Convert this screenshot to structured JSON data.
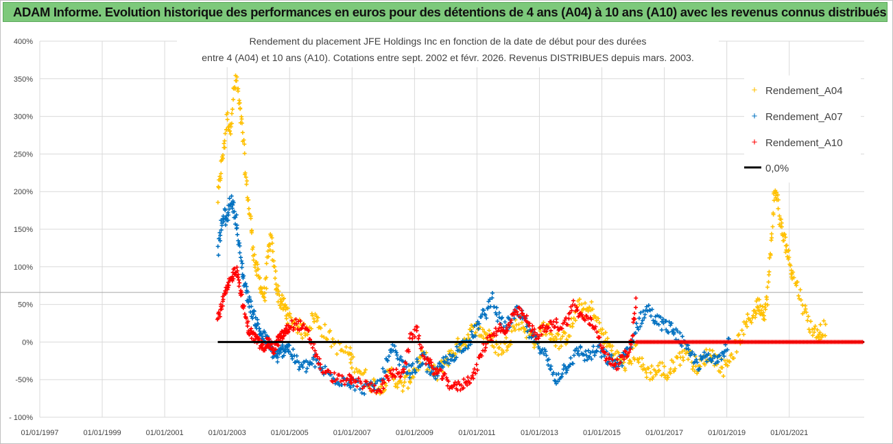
{
  "banner": {
    "title": "ADAM Informe. Evolution historique des performances en euros pour des détentions de 4 ans (A04) à 10 ans (A10) avec les revenus connus distribués"
  },
  "colors": {
    "banner_bg": "#7dc97b",
    "a04": "#ffc000",
    "a07": "#0070c0",
    "a10": "#ff0000",
    "zero_line": "#000000",
    "grid": "#d9d9d9"
  },
  "chart_data": {
    "type": "scatter",
    "title_lines": [
      "Rendement du placement JFE Holdings Inc en fonction de la date de début pour des durées",
      "entre 4 (A04) et 10 ans (A10). Cotations entre sept. 2002 et févr. 2026. Revenus DISTRIBUES depuis mars. 2003."
    ],
    "ylim": [
      -100,
      400
    ],
    "y_ticks": [
      {
        "value": 400,
        "label": "400%"
      },
      {
        "value": 350,
        "label": "350%"
      },
      {
        "value": 300,
        "label": "300%"
      },
      {
        "value": 250,
        "label": "250%"
      },
      {
        "value": 200,
        "label": "200%"
      },
      {
        "value": 150,
        "label": "150%"
      },
      {
        "value": 100,
        "label": "100%"
      },
      {
        "value": 50,
        "label": "50%"
      },
      {
        "value": 0,
        "label": "0%"
      },
      {
        "value": -50,
        "label": "-50%"
      },
      {
        "value": -100,
        "label": "- 100%"
      }
    ],
    "xlim": [
      1997.0,
      2023.4
    ],
    "x_ticks": [
      {
        "value": 1997,
        "label": "01/01/1997"
      },
      {
        "value": 1999,
        "label": "01/01/1999"
      },
      {
        "value": 2001,
        "label": "01/01/2001"
      },
      {
        "value": 2003,
        "label": "01/01/2003"
      },
      {
        "value": 2005,
        "label": "01/01/2005"
      },
      {
        "value": 2007,
        "label": "01/01/2007"
      },
      {
        "value": 2009,
        "label": "01/01/2009"
      },
      {
        "value": 2011,
        "label": "01/01/2011"
      },
      {
        "value": 2013,
        "label": "01/01/2013"
      },
      {
        "value": 2015,
        "label": "01/01/2015"
      },
      {
        "value": 2017,
        "label": "01/01/2017"
      },
      {
        "value": 2019,
        "label": "01/01/2019"
      },
      {
        "value": 2021,
        "label": "01/01/2021"
      }
    ],
    "reference_line_y": 66,
    "series": [
      {
        "name": "Rendement_A04",
        "marker": "+",
        "x": [
          2002.7,
          2002.8,
          2002.9,
          2003.0,
          2003.1,
          2003.2,
          2003.3,
          2003.4,
          2003.5,
          2003.6,
          2003.7,
          2003.8,
          2003.9,
          2004.0,
          2004.1,
          2004.2,
          2004.3,
          2004.4,
          2004.5,
          2004.6,
          2004.7,
          2004.8,
          2004.9,
          2005.0,
          2005.2,
          2005.4,
          2005.6,
          2005.8,
          2006.0,
          2006.3,
          2006.6,
          2006.9,
          2007.0,
          2007.3,
          2007.6,
          2007.9,
          2008.1,
          2008.3,
          2008.5,
          2008.7,
          2008.9,
          2009.1,
          2009.3,
          2009.5,
          2009.7,
          2009.9,
          2010.1,
          2010.3,
          2010.5,
          2010.7,
          2010.9,
          2011.1,
          2011.3,
          2011.5,
          2011.7,
          2011.9,
          2012.1,
          2012.3,
          2012.5,
          2012.7,
          2012.9,
          2013.1,
          2013.3,
          2013.5,
          2013.7,
          2013.9,
          2014.1,
          2014.3,
          2014.5,
          2014.7,
          2014.9,
          2015.1,
          2015.3,
          2015.5,
          2015.7,
          2015.9,
          2016.1,
          2016.3,
          2016.5,
          2016.7,
          2016.9,
          2017.1,
          2017.3,
          2017.5,
          2017.7,
          2017.9,
          2018.1,
          2018.3,
          2018.5,
          2018.7,
          2018.9,
          2019.1,
          2019.3,
          2019.5,
          2019.7,
          2019.9,
          2020.0,
          2020.1,
          2020.2,
          2020.3,
          2020.4,
          2020.5,
          2020.6,
          2020.7,
          2020.8,
          2020.9,
          2021.0,
          2021.1,
          2021.3,
          2021.5,
          2021.7,
          2021.9,
          2022.0
        ],
        "y": [
          190,
          230,
          260,
          300,
          280,
          330,
          350,
          310,
          280,
          215,
          180,
          140,
          100,
          90,
          70,
          60,
          110,
          140,
          100,
          70,
          55,
          50,
          40,
          30,
          25,
          15,
          20,
          35,
          20,
          5,
          -10,
          -15,
          -25,
          -40,
          -55,
          -60,
          -50,
          -40,
          -60,
          -55,
          -45,
          -30,
          -20,
          -35,
          -45,
          -30,
          -20,
          -10,
          0,
          5,
          20,
          15,
          10,
          0,
          -10,
          -5,
          10,
          30,
          20,
          10,
          0,
          20,
          15,
          5,
          0,
          10,
          30,
          50,
          40,
          45,
          20,
          5,
          -10,
          -20,
          -30,
          -25,
          -10,
          -35,
          -40,
          -40,
          -35,
          -45,
          -30,
          -20,
          -10,
          -25,
          -35,
          -20,
          -15,
          -25,
          -35,
          -20,
          -5,
          10,
          30,
          40,
          50,
          45,
          40,
          60,
          120,
          190,
          200,
          160,
          140,
          130,
          110,
          90,
          70,
          40,
          20,
          10,
          15
        ],
        "x_extra": [
          2022.2
        ],
        "y_extra": [
          20
        ]
      },
      {
        "name": "Rendement_A07",
        "marker": "+",
        "x": [
          2002.7,
          2002.8,
          2002.9,
          2003.0,
          2003.1,
          2003.2,
          2003.3,
          2003.4,
          2003.5,
          2003.6,
          2003.7,
          2003.8,
          2003.9,
          2004.0,
          2004.1,
          2004.2,
          2004.3,
          2004.4,
          2004.5,
          2004.6,
          2004.7,
          2004.8,
          2004.9,
          2005.0,
          2005.2,
          2005.4,
          2005.6,
          2005.8,
          2006.0,
          2006.3,
          2006.6,
          2006.9,
          2007.0,
          2007.3,
          2007.6,
          2007.9,
          2008.1,
          2008.3,
          2008.5,
          2008.7,
          2008.9,
          2009.1,
          2009.3,
          2009.5,
          2009.7,
          2009.9,
          2010.1,
          2010.3,
          2010.5,
          2010.7,
          2010.9,
          2011.1,
          2011.3,
          2011.5,
          2011.7,
          2011.9,
          2012.1,
          2012.3,
          2012.5,
          2012.7,
          2012.9,
          2013.1,
          2013.3,
          2013.5,
          2013.7,
          2013.9,
          2014.1,
          2014.3,
          2014.5,
          2014.7,
          2014.9,
          2015.1,
          2015.3,
          2015.5,
          2015.7,
          2015.9,
          2016.1,
          2016.3,
          2016.5,
          2016.7,
          2016.9,
          2017.1,
          2017.3,
          2017.5,
          2017.7,
          2017.9,
          2018.1,
          2018.3,
          2018.5,
          2018.7,
          2018.9,
          2019.1
        ],
        "y": [
          120,
          150,
          170,
          160,
          190,
          180,
          160,
          120,
          90,
          70,
          55,
          40,
          30,
          20,
          10,
          5,
          0,
          -10,
          -15,
          -20,
          -15,
          -10,
          -5,
          -10,
          -25,
          -35,
          -30,
          -25,
          -35,
          -45,
          -50,
          -50,
          -55,
          -60,
          -62,
          -55,
          -30,
          -10,
          -25,
          -35,
          -40,
          -30,
          -20,
          -45,
          -40,
          -30,
          -25,
          -15,
          -5,
          0,
          10,
          30,
          40,
          60,
          30,
          20,
          30,
          40,
          30,
          10,
          0,
          -10,
          -30,
          -50,
          -40,
          -30,
          -20,
          -10,
          -20,
          -15,
          -10,
          -20,
          -25,
          -30,
          -20,
          -10,
          20,
          35,
          45,
          30,
          25,
          20,
          15,
          5,
          -10,
          -20,
          -30,
          -20,
          -25,
          -20,
          -10,
          5
        ]
      },
      {
        "name": "Rendement_A10",
        "marker": "+",
        "x": [
          2002.7,
          2002.8,
          2002.9,
          2003.0,
          2003.1,
          2003.2,
          2003.3,
          2003.4,
          2003.5,
          2003.6,
          2003.7,
          2003.8,
          2003.9,
          2004.0,
          2004.1,
          2004.2,
          2004.3,
          2004.4,
          2004.5,
          2004.6,
          2004.7,
          2004.8,
          2004.9,
          2005.0,
          2005.2,
          2005.4,
          2005.6,
          2005.8,
          2006.0,
          2006.3,
          2006.6,
          2006.9,
          2007.0,
          2007.3,
          2007.6,
          2007.9,
          2008.1,
          2008.3,
          2008.5,
          2008.7,
          2008.9,
          2009.1,
          2009.3,
          2009.5,
          2009.7,
          2009.9,
          2010.1,
          2010.3,
          2010.5,
          2010.7,
          2010.9,
          2011.1,
          2011.3,
          2011.5,
          2011.7,
          2011.9,
          2012.1,
          2012.3,
          2012.5,
          2012.7,
          2012.9,
          2013.1,
          2013.3,
          2013.5,
          2013.7,
          2013.9,
          2014.1,
          2014.3,
          2014.5,
          2014.7,
          2014.9,
          2015.1,
          2015.3,
          2015.5,
          2015.7,
          2015.9,
          2016.0,
          2016.1
        ],
        "y": [
          30,
          45,
          60,
          70,
          80,
          90,
          100,
          75,
          50,
          30,
          15,
          10,
          5,
          0,
          -5,
          -5,
          0,
          -5,
          -10,
          0,
          5,
          10,
          15,
          20,
          25,
          20,
          10,
          -10,
          -35,
          -45,
          -50,
          -50,
          -52,
          -55,
          -60,
          -62,
          -50,
          -40,
          -45,
          -30,
          10,
          15,
          -20,
          -30,
          -40,
          -45,
          -55,
          -60,
          -58,
          -50,
          -45,
          -20,
          0,
          10,
          20,
          10,
          30,
          40,
          35,
          20,
          10,
          15,
          20,
          25,
          20,
          30,
          50,
          35,
          30,
          25,
          10,
          -20,
          -25,
          -30,
          -20,
          -10,
          20,
          60
        ]
      },
      {
        "name": "0,0%",
        "marker": "line",
        "x": [
          2002.7,
          2023.4
        ],
        "y": [
          0,
          0
        ]
      }
    ]
  }
}
